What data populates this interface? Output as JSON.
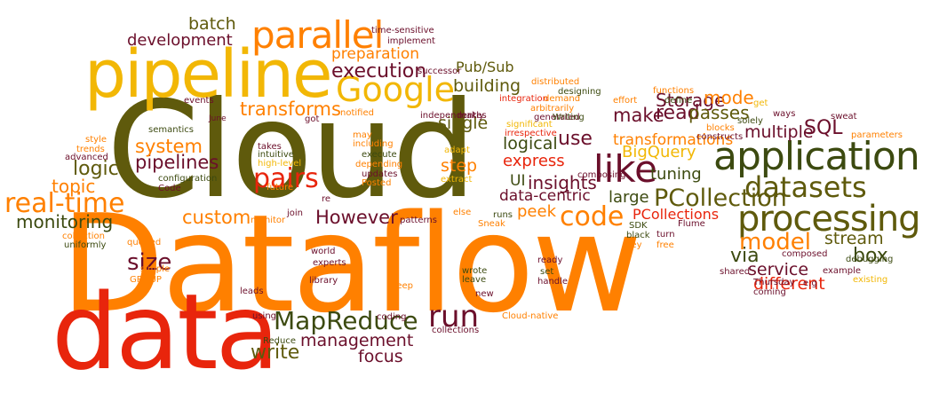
{
  "palette": {
    "olive": "#5f5a0c",
    "orange": "#ff8000",
    "gold": "#f2b705",
    "maroon": "#6b0f2b",
    "red": "#e8250c",
    "darkolive": "#3c4a10"
  },
  "words": [
    {
      "id": "dataflow",
      "text": "Dataflow",
      "c": "orange"
    },
    {
      "id": "cloud",
      "text": "Cloud",
      "c": "olive"
    },
    {
      "id": "data",
      "text": "data",
      "c": "red"
    },
    {
      "id": "pipeline",
      "text": "pipeline",
      "c": "gold"
    },
    {
      "id": "application",
      "text": "application",
      "c": "darkolive"
    },
    {
      "id": "processing",
      "text": "processing",
      "c": "olive"
    },
    {
      "id": "google",
      "text": "Google",
      "c": "gold"
    },
    {
      "id": "parallel",
      "text": "parallel",
      "c": "orange"
    },
    {
      "id": "like",
      "text": "like",
      "c": "maroon"
    },
    {
      "id": "real-time",
      "text": "real-time",
      "c": "orange"
    },
    {
      "id": "mapreduce",
      "text": "MapReduce",
      "c": "darkolive"
    },
    {
      "id": "run",
      "text": "run",
      "c": "maroon"
    },
    {
      "id": "datasets",
      "text": "datasets",
      "c": "olive"
    },
    {
      "id": "pcollection",
      "text": "PCollection",
      "c": "olive"
    },
    {
      "id": "code",
      "text": "code",
      "c": "orange"
    },
    {
      "id": "model",
      "text": "model",
      "c": "orange"
    },
    {
      "id": "size",
      "text": "size",
      "c": "maroon"
    },
    {
      "id": "pipelines",
      "text": "pipelines",
      "c": "maroon"
    },
    {
      "id": "pairs",
      "text": "pairs",
      "c": "red"
    },
    {
      "id": "system",
      "text": "system",
      "c": "orange"
    },
    {
      "id": "execution",
      "text": "execution",
      "c": "maroon"
    },
    {
      "id": "preparation",
      "text": "preparation",
      "c": "orange"
    },
    {
      "id": "development",
      "text": "development",
      "c": "maroon"
    },
    {
      "id": "batch",
      "text": "batch",
      "c": "olive"
    },
    {
      "id": "transforms",
      "text": "transforms",
      "c": "orange"
    },
    {
      "id": "logic",
      "text": "logic",
      "c": "olive"
    },
    {
      "id": "topic",
      "text": "topic",
      "c": "orange"
    },
    {
      "id": "monitoring",
      "text": "monitoring",
      "c": "darkolive"
    },
    {
      "id": "custom",
      "text": "custom",
      "c": "orange"
    },
    {
      "id": "however",
      "text": "However",
      "c": "maroon"
    },
    {
      "id": "management",
      "text": "management",
      "c": "maroon"
    },
    {
      "id": "write",
      "text": "write",
      "c": "olive"
    },
    {
      "id": "focus",
      "text": "focus",
      "c": "maroon"
    },
    {
      "id": "service",
      "text": "service",
      "c": "maroon"
    },
    {
      "id": "different",
      "text": "different",
      "c": "red"
    },
    {
      "id": "via",
      "text": "via",
      "c": "darkolive"
    },
    {
      "id": "stream",
      "text": "stream",
      "c": "olive"
    },
    {
      "id": "box",
      "text": "box",
      "c": "darkolive"
    },
    {
      "id": "storage",
      "text": "Storage",
      "c": "maroon"
    },
    {
      "id": "read",
      "text": "read",
      "c": "maroon"
    },
    {
      "id": "make",
      "text": "make",
      "c": "maroon"
    },
    {
      "id": "use",
      "text": "use",
      "c": "maroon"
    },
    {
      "id": "logical",
      "text": "logical",
      "c": "darkolive"
    },
    {
      "id": "express",
      "text": "express",
      "c": "red"
    },
    {
      "id": "step",
      "text": "step",
      "c": "orange"
    },
    {
      "id": "building",
      "text": "building",
      "c": "olive"
    },
    {
      "id": "single",
      "text": "single",
      "c": "olive"
    },
    {
      "id": "insights",
      "text": "insights",
      "c": "maroon"
    },
    {
      "id": "ui",
      "text": "UI",
      "c": "darkolive"
    },
    {
      "id": "data-centric",
      "text": "data-centric",
      "c": "maroon"
    },
    {
      "id": "peek",
      "text": "peek",
      "c": "orange"
    },
    {
      "id": "large",
      "text": "large",
      "c": "darkolive"
    },
    {
      "id": "bigquery",
      "text": "BigQuery",
      "c": "gold"
    },
    {
      "id": "tuning",
      "text": "tuning",
      "c": "darkolive"
    },
    {
      "id": "sql",
      "text": "SQL",
      "c": "maroon"
    },
    {
      "id": "multiple",
      "text": "multiple",
      "c": "maroon"
    },
    {
      "id": "transformations",
      "text": "transformations",
      "c": "orange"
    },
    {
      "id": "passes",
      "text": "passes",
      "c": "olive"
    },
    {
      "id": "mode",
      "text": "mode",
      "c": "orange"
    },
    {
      "id": "pcollections",
      "text": "PCollections",
      "c": "red"
    },
    {
      "id": "pubsub",
      "text": "Pub/Sub",
      "c": "olive"
    },
    {
      "id": "time-sensitive",
      "text": "time-sensitive",
      "c": "maroon"
    },
    {
      "id": "implement",
      "text": "implement",
      "c": "maroon"
    },
    {
      "id": "successor",
      "text": "successor",
      "c": "maroon"
    },
    {
      "id": "integration",
      "text": "integration",
      "c": "red"
    },
    {
      "id": "distributed",
      "text": "distributed",
      "c": "orange"
    },
    {
      "id": "demand",
      "text": "demand",
      "c": "orange"
    },
    {
      "id": "arbitrarily",
      "text": "arbitrarily",
      "c": "orange"
    },
    {
      "id": "designing",
      "text": "designing",
      "c": "darkolive"
    },
    {
      "id": "generated",
      "text": "generated",
      "c": "maroon"
    },
    {
      "id": "significant",
      "text": "significant",
      "c": "gold"
    },
    {
      "id": "irrespective",
      "text": "irrespective",
      "c": "red"
    },
    {
      "id": "writing",
      "text": "Writing",
      "c": "orange"
    },
    {
      "id": "functions",
      "text": "functions",
      "c": "orange"
    },
    {
      "id": "effort",
      "text": "effort",
      "c": "darkolive"
    },
    {
      "id": "define",
      "text": "define",
      "c": "gold"
    },
    {
      "id": "get",
      "text": "get",
      "c": "orange"
    },
    {
      "id": "blocks",
      "text": "blocks",
      "c": "maroon"
    },
    {
      "id": "constructs",
      "text": "constructs",
      "c": "darkolive"
    },
    {
      "id": "solely",
      "text": "solely",
      "c": "maroon"
    },
    {
      "id": "ways",
      "text": "ways",
      "c": "maroon"
    },
    {
      "id": "sweat",
      "text": "sweat",
      "c": "orange"
    },
    {
      "id": "parameters",
      "text": "parameters",
      "c": "maroon"
    },
    {
      "id": "makes",
      "text": "makes",
      "c": "maroon"
    },
    {
      "id": "independently",
      "text": "independently",
      "c": "orange"
    },
    {
      "id": "notified",
      "text": "notified",
      "c": "orange"
    },
    {
      "id": "may",
      "text": "may",
      "c": "darkolive"
    },
    {
      "id": "including",
      "text": "including",
      "c": "orange"
    },
    {
      "id": "execute",
      "text": "execute",
      "c": "darkolive"
    },
    {
      "id": "depending",
      "text": "depending",
      "c": "orange"
    },
    {
      "id": "updates",
      "text": "updates",
      "c": "maroon"
    },
    {
      "id": "posted",
      "text": "Posted",
      "c": "orange"
    },
    {
      "id": "adapt",
      "text": "adapt",
      "c": "gold"
    },
    {
      "id": "extract",
      "text": "extract",
      "c": "gold"
    },
    {
      "id": "composing",
      "text": "composing",
      "c": "maroon"
    },
    {
      "id": "events",
      "text": "events",
      "c": "maroon"
    },
    {
      "id": "june",
      "text": "June",
      "c": "maroon"
    },
    {
      "id": "got",
      "text": "got",
      "c": "maroon"
    },
    {
      "id": "semantics",
      "text": "semantics",
      "c": "darkolive"
    },
    {
      "id": "takes",
      "text": "takes",
      "c": "maroon"
    },
    {
      "id": "intuitive",
      "text": "intuitive",
      "c": "darkolive"
    },
    {
      "id": "high-level",
      "text": "high-level",
      "c": "gold"
    },
    {
      "id": "style",
      "text": "style",
      "c": "orange"
    },
    {
      "id": "trends",
      "text": "trends",
      "c": "orange"
    },
    {
      "id": "advanced",
      "text": "advanced",
      "c": "maroon"
    },
    {
      "id": "configuration",
      "text": "configuration",
      "c": "darkolive"
    },
    {
      "id": "code-small",
      "text": "Code",
      "c": "maroon"
    },
    {
      "id": "future",
      "text": "future",
      "c": "orange"
    },
    {
      "id": "re",
      "text": "re",
      "c": "maroon"
    },
    {
      "id": "join",
      "text": "join",
      "c": "maroon"
    },
    {
      "id": "monitor",
      "text": "monitor",
      "c": "orange"
    },
    {
      "id": "else",
      "text": "else",
      "c": "orange"
    },
    {
      "id": "patterns",
      "text": "patterns",
      "c": "maroon"
    },
    {
      "id": "runs",
      "text": "runs",
      "c": "darkolive"
    },
    {
      "id": "sneak",
      "text": "Sneak",
      "c": "orange"
    },
    {
      "id": "collection",
      "text": "collection",
      "c": "orange"
    },
    {
      "id": "uniformly",
      "text": "uniformly",
      "c": "darkolive"
    },
    {
      "id": "queried",
      "text": "queried",
      "c": "orange"
    },
    {
      "id": "simple",
      "text": "simple",
      "c": "orange"
    },
    {
      "id": "group",
      "text": "GROUP",
      "c": "orange"
    },
    {
      "id": "world",
      "text": "world",
      "c": "maroon"
    },
    {
      "id": "experts",
      "text": "experts",
      "c": "maroon"
    },
    {
      "id": "library",
      "text": "library",
      "c": "maroon"
    },
    {
      "id": "leads",
      "text": "leads",
      "c": "maroon"
    },
    {
      "id": "deep",
      "text": "deep",
      "c": "orange"
    },
    {
      "id": "wrote",
      "text": "wrote",
      "c": "darkolive"
    },
    {
      "id": "leave",
      "text": "leave",
      "c": "darkolive"
    },
    {
      "id": "new",
      "text": "new",
      "c": "maroon"
    },
    {
      "id": "ready",
      "text": "ready",
      "c": "maroon"
    },
    {
      "id": "set",
      "text": "set",
      "c": "darkolive"
    },
    {
      "id": "handle",
      "text": "handle",
      "c": "maroon"
    },
    {
      "id": "cloud-native",
      "text": "Cloud-native",
      "c": "orange"
    },
    {
      "id": "coding",
      "text": "coding",
      "c": "maroon"
    },
    {
      "id": "collections",
      "text": "collections",
      "c": "maroon"
    },
    {
      "id": "reduce",
      "text": "Reduce",
      "c": "darkolive"
    },
    {
      "id": "using",
      "text": "using",
      "c": "maroon"
    },
    {
      "id": "flume",
      "text": "Flume",
      "c": "maroon"
    },
    {
      "id": "sdk",
      "text": "SDK",
      "c": "darkolive"
    },
    {
      "id": "black",
      "text": "black",
      "c": "darkolive"
    },
    {
      "id": "key",
      "text": "key",
      "c": "orange"
    },
    {
      "id": "turn",
      "text": "turn",
      "c": "maroon"
    },
    {
      "id": "free",
      "text": "free",
      "c": "orange"
    },
    {
      "id": "composed",
      "text": "composed",
      "c": "maroon"
    },
    {
      "id": "shared",
      "text": "shared",
      "c": "maroon"
    },
    {
      "id": "eg",
      "text": "e.g",
      "c": "maroon"
    },
    {
      "id": "example",
      "text": "example",
      "c": "maroon"
    },
    {
      "id": "thursday",
      "text": "Thursday",
      "c": "maroon"
    },
    {
      "id": "coming",
      "text": "coming",
      "c": "maroon"
    },
    {
      "id": "existing",
      "text": "existing",
      "c": "gold"
    },
    {
      "id": "debugging",
      "text": "debugging",
      "c": "darkolive"
    }
  ]
}
